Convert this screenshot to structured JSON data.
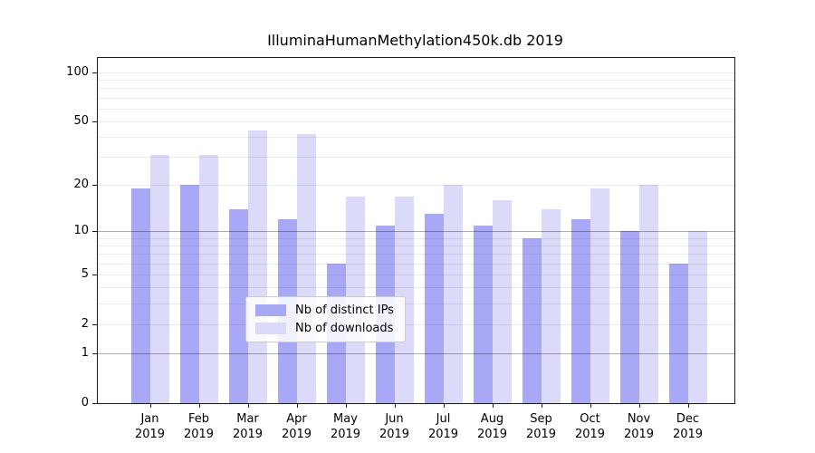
{
  "figure": {
    "kind": "bar-chart-image"
  },
  "chart_data": {
    "type": "bar",
    "title": "IlluminaHumanMethylation450k.db 2019",
    "xlabel": "",
    "ylabel": "",
    "x_year": "2019",
    "categories": [
      "Jan",
      "Feb",
      "Mar",
      "Apr",
      "May",
      "Jun",
      "Jul",
      "Aug",
      "Sep",
      "Oct",
      "Nov",
      "Dec"
    ],
    "series": [
      {
        "name": "Nb of distinct IPs",
        "color": "#a8a8f6",
        "values": [
          19,
          20,
          14,
          12,
          6,
          11,
          13,
          11,
          9,
          12,
          10,
          6
        ]
      },
      {
        "name": "Nb of downloads",
        "color": "#dbdbf9",
        "values": [
          31,
          31,
          44,
          42,
          17,
          17,
          20,
          16,
          14,
          19,
          20,
          10
        ]
      }
    ],
    "yscale": "log1p",
    "ylim": [
      0,
      123
    ],
    "y_tick_values": [
      100,
      50,
      20,
      10,
      5,
      2,
      1,
      0
    ],
    "y_tick_labels": [
      "100",
      "50",
      "20",
      "10",
      "5",
      "2",
      "1",
      "0"
    ],
    "grid_minor_values": [
      2,
      3,
      4,
      5,
      6,
      7,
      8,
      9,
      20,
      30,
      40,
      50,
      60,
      70,
      80,
      90,
      100
    ],
    "grid_major_values": [
      1,
      10
    ],
    "grid": "on",
    "legend_position": "lower center",
    "legend_entries": [
      "Nb of distinct IPs",
      "Nb of downloads"
    ]
  }
}
